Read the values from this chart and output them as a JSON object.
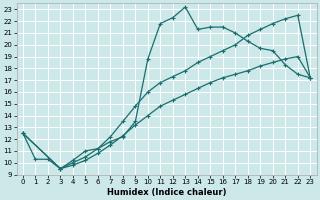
{
  "xlabel": "Humidex (Indice chaleur)",
  "bg_color": "#cce8e8",
  "grid_color": "#ffffff",
  "line_color": "#1a6e6e",
  "xlim": [
    -0.5,
    23.5
  ],
  "ylim": [
    9,
    23.5
  ],
  "xticks": [
    0,
    1,
    2,
    3,
    4,
    5,
    6,
    7,
    8,
    9,
    10,
    11,
    12,
    13,
    14,
    15,
    16,
    17,
    18,
    19,
    20,
    21,
    22,
    23
  ],
  "yticks": [
    9,
    10,
    11,
    12,
    13,
    14,
    15,
    16,
    17,
    18,
    19,
    20,
    21,
    22,
    23
  ],
  "line1_x": [
    0,
    1,
    2,
    3,
    4,
    5,
    6,
    7,
    8,
    9,
    10,
    11,
    12,
    13,
    14,
    15,
    16,
    17,
    18,
    19,
    20,
    21,
    22,
    23
  ],
  "line1_y": [
    12.5,
    10.3,
    10.3,
    9.5,
    10.2,
    11.0,
    11.2,
    11.8,
    12.2,
    13.5,
    18.8,
    21.8,
    22.3,
    23.2,
    21.3,
    21.5,
    21.5,
    21.0,
    20.3,
    19.7,
    19.5,
    18.3,
    17.5,
    17.2
  ],
  "line2_x": [
    0,
    3,
    4,
    5,
    6,
    7,
    8,
    9,
    10,
    11,
    12,
    13,
    14,
    15,
    16,
    17,
    18,
    19,
    20,
    21,
    22,
    23
  ],
  "line2_y": [
    12.5,
    9.5,
    10.0,
    10.5,
    11.2,
    12.2,
    13.5,
    14.8,
    16.0,
    16.8,
    17.3,
    17.8,
    18.5,
    19.0,
    19.5,
    20.0,
    20.8,
    21.3,
    21.8,
    22.2,
    22.5,
    17.2
  ],
  "line3_x": [
    0,
    3,
    4,
    5,
    6,
    7,
    8,
    9,
    10,
    11,
    12,
    13,
    14,
    15,
    16,
    17,
    18,
    19,
    20,
    21,
    22,
    23
  ],
  "line3_y": [
    12.5,
    9.5,
    9.8,
    10.2,
    10.8,
    11.5,
    12.3,
    13.2,
    14.0,
    14.8,
    15.3,
    15.8,
    16.3,
    16.8,
    17.2,
    17.5,
    17.8,
    18.2,
    18.5,
    18.8,
    19.0,
    17.2
  ],
  "tick_fontsize": 5,
  "xlabel_fontsize": 6
}
